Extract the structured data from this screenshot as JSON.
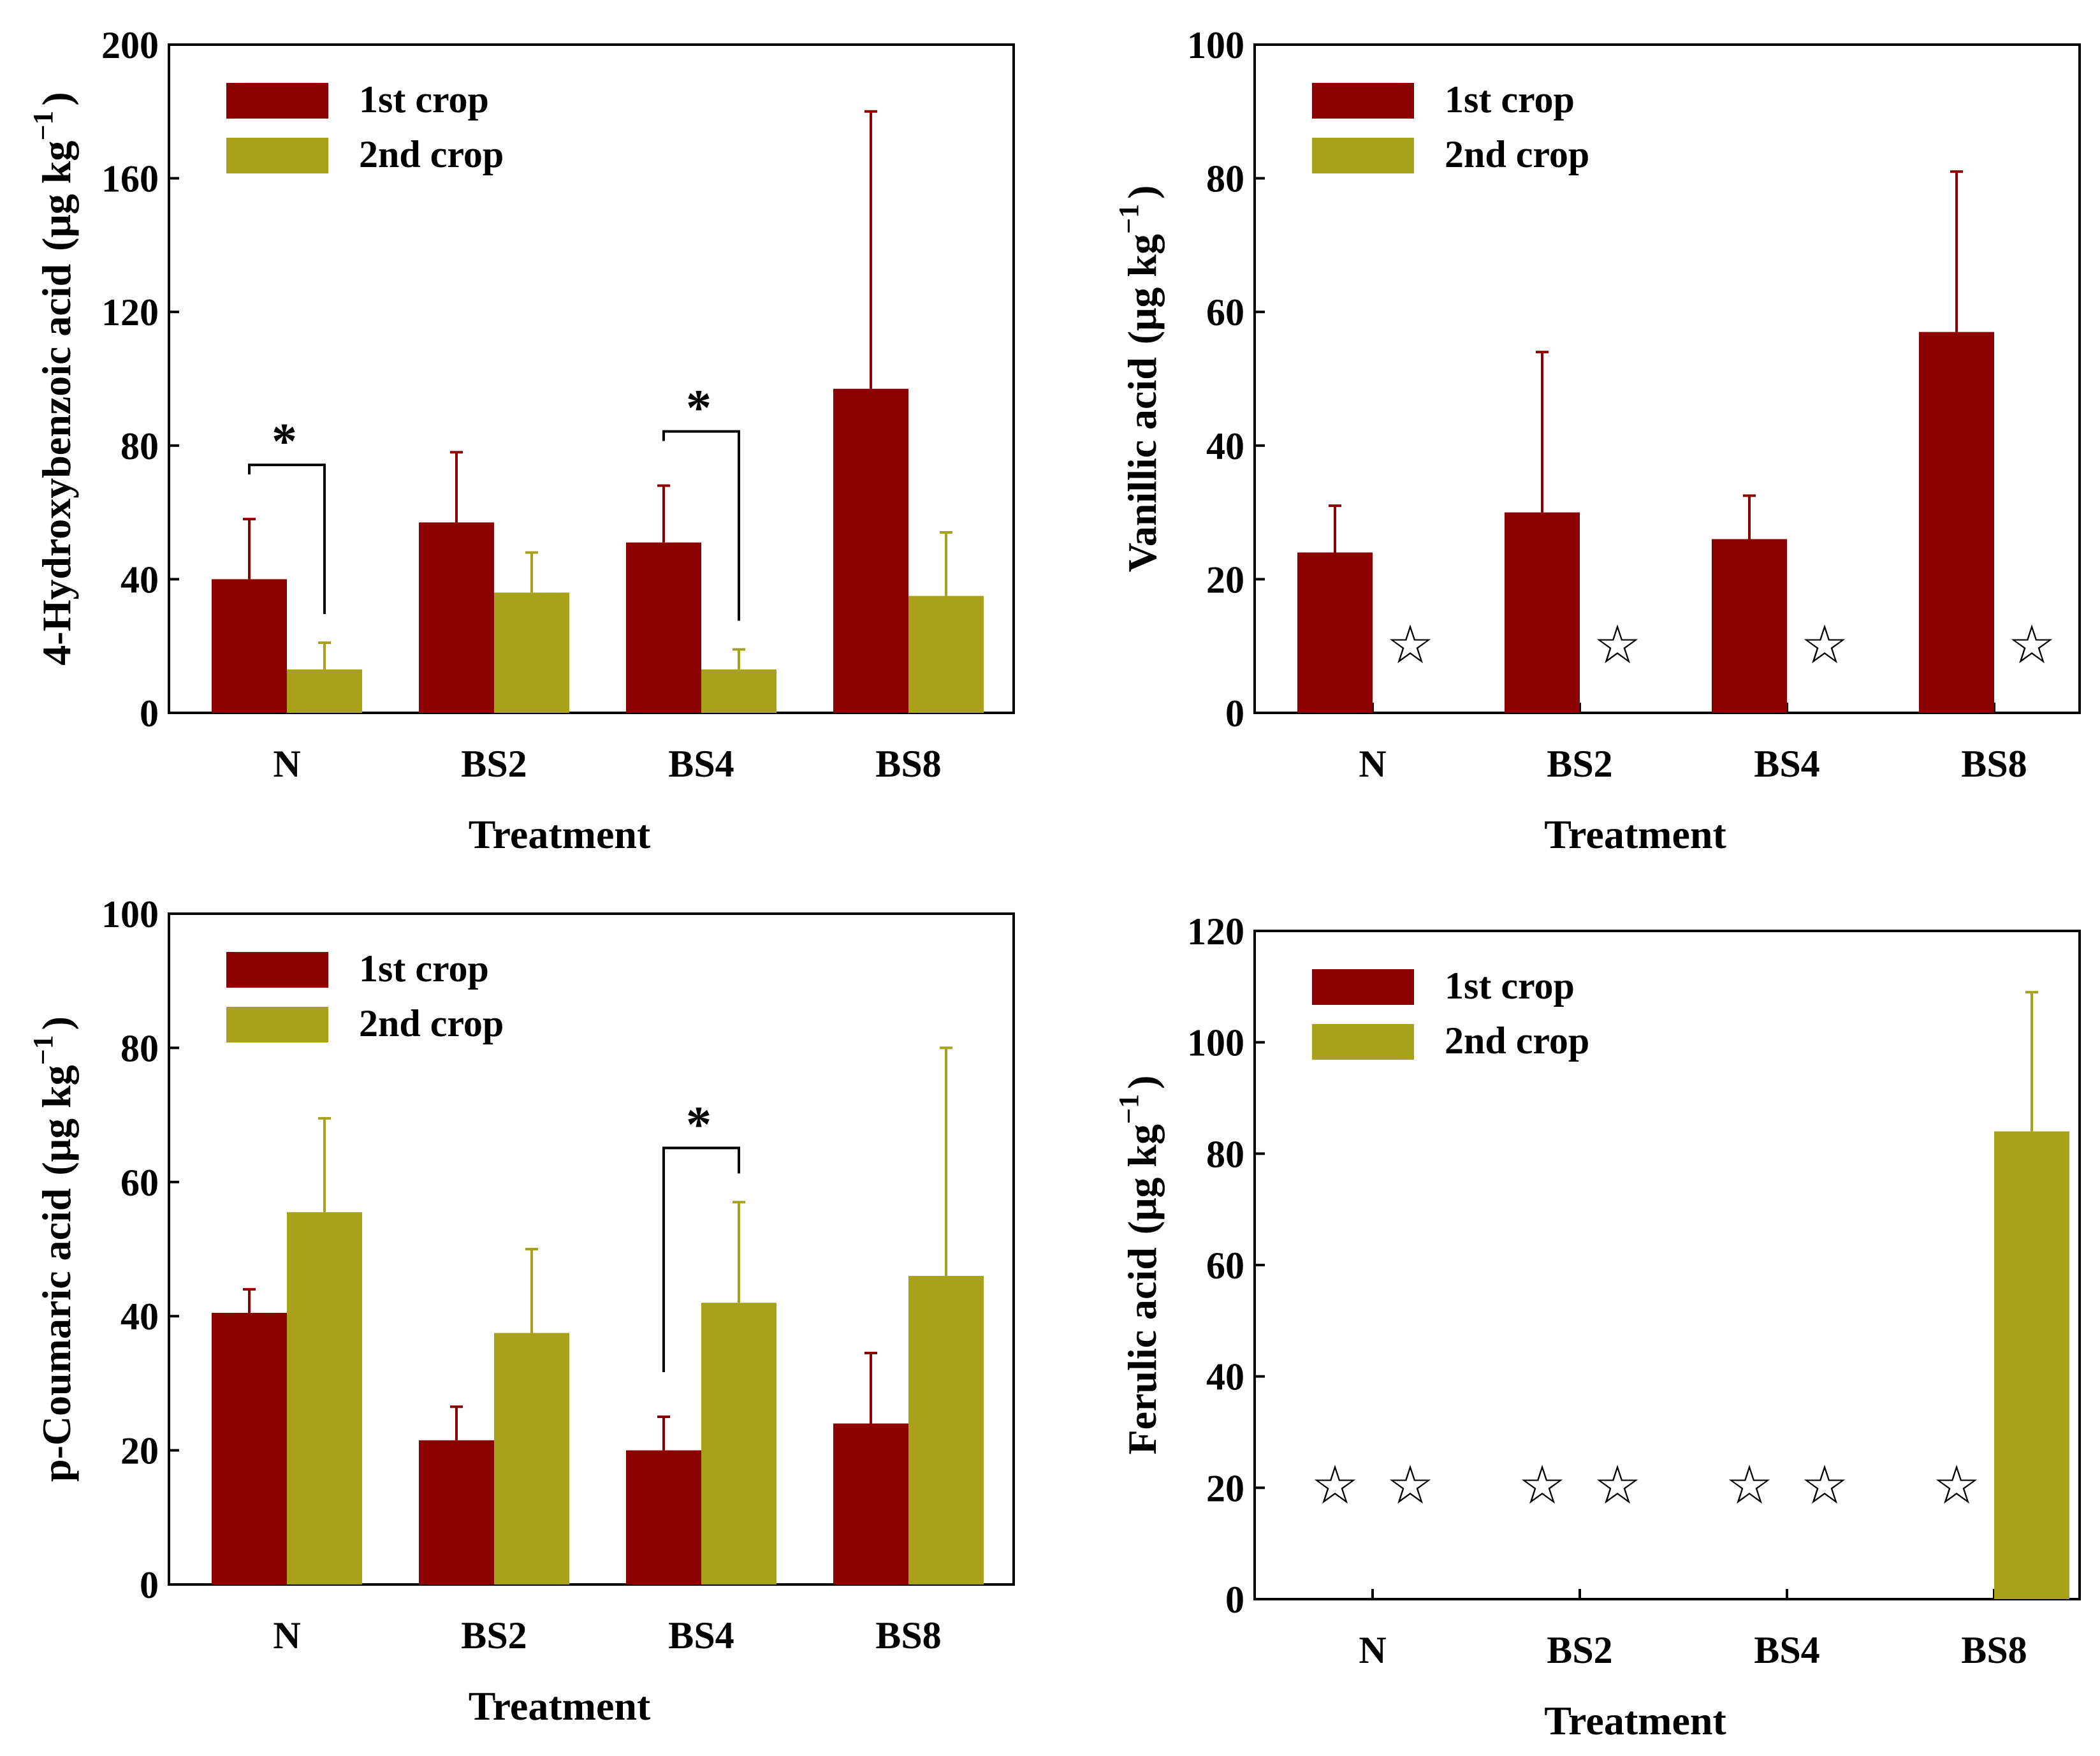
{
  "colors": {
    "first_crop": "#8B0000",
    "second_crop": "#A8A21B"
  },
  "chart_data": [
    {
      "type": "bar",
      "ylabel": "4-Hydroxybenzoic acid",
      "yunit": "(μg kg",
      "yunit_exp": "−1",
      "yunit_close": ")",
      "xlabel": "Treatment",
      "categories": [
        "N",
        "BS2",
        "BS4",
        "BS8"
      ],
      "ylim": [
        0,
        200
      ],
      "yticks": [
        0,
        40,
        80,
        120,
        160,
        200
      ],
      "series": [
        {
          "name": "1st crop",
          "values": [
            40,
            57,
            51,
            97
          ],
          "errors": [
            18,
            21,
            17,
            83
          ]
        },
        {
          "name": "2nd crop",
          "values": [
            13,
            36,
            13,
            35
          ],
          "errors": [
            8,
            12,
            6,
            19
          ]
        }
      ],
      "legend": "top-left",
      "not_detected": [],
      "significance": [
        {
          "category": "N",
          "label": "*"
        },
        {
          "category": "BS4",
          "label": "*"
        }
      ]
    },
    {
      "type": "bar",
      "ylabel": "Vanillic acid",
      "yunit": "(μg kg",
      "yunit_exp": "−1",
      "yunit_close": ")",
      "xlabel": "Treatment",
      "categories": [
        "N",
        "BS2",
        "BS4",
        "BS8"
      ],
      "ylim": [
        0,
        100
      ],
      "yticks": [
        0,
        20,
        40,
        60,
        80,
        100
      ],
      "series": [
        {
          "name": "1st crop",
          "values": [
            24,
            30,
            26,
            57
          ],
          "errors": [
            7,
            24,
            6.5,
            24
          ]
        },
        {
          "name": "2nd crop",
          "values": [
            null,
            null,
            null,
            null
          ],
          "errors": [
            null,
            null,
            null,
            null
          ]
        }
      ],
      "legend": "top-left",
      "not_detected_symbol": "☆",
      "not_detected": [
        {
          "category": "N",
          "series": 1
        },
        {
          "category": "BS2",
          "series": 1
        },
        {
          "category": "BS4",
          "series": 1
        },
        {
          "category": "BS8",
          "series": 1
        }
      ],
      "significance": []
    },
    {
      "type": "bar",
      "ylabel": "p-Coumaric acid",
      "yunit": "(μg kg",
      "yunit_exp": "−1",
      "yunit_close": ")",
      "xlabel": "Treatment",
      "categories": [
        "N",
        "BS2",
        "BS4",
        "BS8"
      ],
      "ylim": [
        0,
        100
      ],
      "yticks": [
        0,
        20,
        40,
        60,
        80,
        100
      ],
      "series": [
        {
          "name": "1st crop",
          "values": [
            40.5,
            21.5,
            20,
            24
          ],
          "errors": [
            3.5,
            5,
            5,
            10.5
          ]
        },
        {
          "name": "2nd crop",
          "values": [
            55.5,
            37.5,
            42,
            46
          ],
          "errors": [
            14,
            12.5,
            15,
            34
          ]
        }
      ],
      "legend": "top-left",
      "not_detected": [],
      "significance": [
        {
          "category": "BS4",
          "label": "*"
        }
      ]
    },
    {
      "type": "bar",
      "ylabel": "Ferulic acid",
      "yunit": "(μg kg",
      "yunit_exp": "−1",
      "yunit_close": ")",
      "xlabel": "Treatment",
      "categories": [
        "N",
        "BS2",
        "BS4",
        "BS8"
      ],
      "ylim": [
        0,
        120
      ],
      "yticks": [
        0,
        20,
        40,
        60,
        80,
        100,
        120
      ],
      "series": [
        {
          "name": "1st crop",
          "values": [
            null,
            null,
            null,
            null
          ],
          "errors": [
            null,
            null,
            null,
            null
          ]
        },
        {
          "name": "2nd crop",
          "values": [
            null,
            null,
            null,
            84
          ],
          "errors": [
            null,
            null,
            null,
            25
          ]
        }
      ],
      "legend": "top-left",
      "not_detected_symbol": "☆",
      "not_detected": [
        {
          "category": "N",
          "series": 0
        },
        {
          "category": "N",
          "series": 1
        },
        {
          "category": "BS2",
          "series": 0
        },
        {
          "category": "BS2",
          "series": 1
        },
        {
          "category": "BS4",
          "series": 0
        },
        {
          "category": "BS4",
          "series": 1
        },
        {
          "category": "BS8",
          "series": 0
        }
      ],
      "significance": []
    }
  ]
}
